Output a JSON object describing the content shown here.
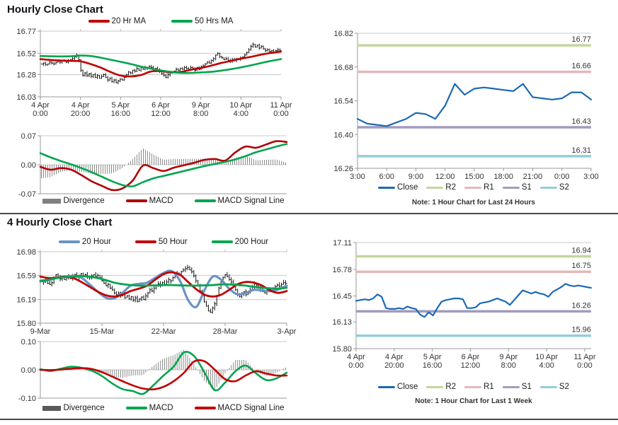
{
  "legends": {
    "hourly_price": [
      {
        "label": "20 Hr MA",
        "color": "#c00000"
      },
      {
        "label": "50 Hrs MA",
        "color": "#00a550"
      }
    ],
    "hourly_macd": [
      {
        "label": "Divergence",
        "color": "#808080",
        "shape": "rect"
      },
      {
        "label": "MACD",
        "color": "#b00000",
        "shape": "line"
      },
      {
        "label": "MACD Signal Line",
        "color": "#00a550",
        "shape": "line"
      }
    ],
    "hourly_levels": [
      {
        "label": "Close",
        "color": "#1a6ab4"
      },
      {
        "label": "R2",
        "color": "#c3d69b"
      },
      {
        "label": "R1",
        "color": "#e5b8b7"
      },
      {
        "label": "S1",
        "color": "#a29ac2"
      },
      {
        "label": "S2",
        "color": "#92cddc"
      }
    ],
    "four_price": [
      {
        "label": "20 Hour",
        "color": "#6b93c4"
      },
      {
        "label": "50 Hour",
        "color": "#c00000"
      },
      {
        "label": "200 Hour",
        "color": "#00a550"
      }
    ],
    "four_macd": [
      {
        "label": "Divergence",
        "color": "#595959",
        "shape": "rect"
      },
      {
        "label": "MACD",
        "color": "#00a550",
        "shape": "line"
      },
      {
        "label": "MACD Signal Line",
        "color": "#c00000",
        "shape": "line"
      }
    ],
    "four_levels": [
      {
        "label": "Close",
        "color": "#1a6ab4"
      },
      {
        "label": "R2",
        "color": "#c3d69b"
      },
      {
        "label": "R1",
        "color": "#e5b8b7"
      },
      {
        "label": "S1",
        "color": "#a29ac2"
      },
      {
        "label": "S2",
        "color": "#92cddc"
      }
    ]
  },
  "chart_data": [
    {
      "id": "hourly_price",
      "type": "bar",
      "title": "Hourly Close Chart",
      "ylim": [
        16.03,
        16.77
      ],
      "yticks": [
        16.77,
        16.52,
        16.28,
        16.03
      ],
      "ytick_labels": [
        "16.77",
        "16.52",
        "16.28",
        "16.03"
      ],
      "grid_values": [
        16.52,
        16.28
      ],
      "xticks": [
        [
          "4 Apr",
          "0:00"
        ],
        [
          "4 Apr",
          "20:00"
        ],
        [
          "5 Apr",
          "16:00"
        ],
        [
          "6 Apr",
          "12:00"
        ],
        [
          "9 Apr",
          "8:00"
        ],
        [
          "10 Apr",
          "4:00"
        ],
        [
          "11 Apr",
          "0:00"
        ]
      ],
      "bar_color": "#111111",
      "closes": [
        16.4,
        16.41,
        16.39,
        16.4,
        16.42,
        16.41,
        16.4,
        16.42,
        16.43,
        16.42,
        16.44,
        16.43,
        16.42,
        16.44,
        16.45,
        16.46,
        16.48,
        16.5,
        16.45,
        16.33,
        16.27,
        16.3,
        16.27,
        16.29,
        16.26,
        16.28,
        16.25,
        16.27,
        16.24,
        16.26,
        16.28,
        16.25,
        16.22,
        16.24,
        16.2,
        16.22,
        16.19,
        16.21,
        16.23,
        16.22,
        16.25,
        16.28,
        16.31,
        16.3,
        16.33,
        16.32,
        16.35,
        16.33,
        16.36,
        16.34,
        16.36,
        16.35,
        16.37,
        16.36,
        16.34,
        16.35,
        16.33,
        16.32,
        16.29,
        16.27,
        16.25,
        16.28,
        16.3,
        16.31,
        16.32,
        16.34,
        16.33,
        16.35,
        16.34,
        16.36,
        16.35,
        16.34,
        16.36,
        16.35,
        16.33,
        16.36,
        16.34,
        16.37,
        16.38,
        16.4,
        16.42,
        16.41,
        16.44,
        16.46,
        16.5,
        16.52,
        16.48,
        16.47,
        16.45,
        16.46,
        16.44,
        16.43,
        16.45,
        16.44,
        16.46,
        16.45,
        16.47,
        16.48,
        16.5,
        16.53,
        16.56,
        16.6,
        16.62,
        16.59,
        16.61,
        16.58,
        16.6,
        16.57,
        16.55,
        16.56,
        16.54,
        16.55,
        16.53,
        16.55,
        16.56,
        16.55
      ],
      "series": [
        {
          "name": "20 Hr MA",
          "color": "#c00000",
          "values": [
            16.455,
            16.445,
            16.44,
            16.435,
            16.43,
            16.4,
            16.36,
            16.31,
            16.27,
            16.26,
            16.275,
            16.315,
            16.32,
            16.305,
            16.31,
            16.335,
            16.355,
            16.38,
            16.41,
            16.435,
            16.46,
            16.48,
            16.505,
            16.525,
            16.54
          ]
        },
        {
          "name": "50 Hrs MA",
          "color": "#00a550",
          "values": [
            16.49,
            16.487,
            16.485,
            16.487,
            16.495,
            16.49,
            16.472,
            16.448,
            16.425,
            16.4,
            16.372,
            16.348,
            16.328,
            16.312,
            16.3,
            16.3,
            16.305,
            16.312,
            16.325,
            16.342,
            16.362,
            16.385,
            16.41,
            16.435,
            16.455
          ]
        }
      ]
    },
    {
      "id": "hourly_macd",
      "type": "line",
      "ylim": [
        -0.07,
        0.07
      ],
      "yticks": [
        0.07,
        0.0,
        -0.07
      ],
      "ytick_labels": [
        "0.07",
        "0.00",
        "-0.07"
      ],
      "divergence_color": "#8a8a8a",
      "series": [
        {
          "name": "MACD",
          "color": "#b00000",
          "values": [
            -0.005,
            -0.012,
            -0.008,
            -0.012,
            -0.025,
            -0.04,
            -0.051,
            -0.061,
            -0.057,
            -0.038,
            -0.002,
            -0.008,
            -0.015,
            -0.007,
            -0.001,
            0.005,
            0.012,
            0.014,
            0.01,
            0.03,
            0.044,
            0.041,
            0.049,
            0.057,
            0.055
          ]
        },
        {
          "name": "MACD Signal Line",
          "color": "#00a550",
          "values": [
            0.028,
            0.018,
            0.009,
            0.001,
            -0.008,
            -0.018,
            -0.029,
            -0.04,
            -0.049,
            -0.052,
            -0.042,
            -0.033,
            -0.027,
            -0.021,
            -0.015,
            -0.009,
            -0.003,
            0.002,
            0.007,
            0.013,
            0.021,
            0.03,
            0.037,
            0.044,
            0.05
          ]
        }
      ]
    },
    {
      "id": "hourly_levels",
      "type": "line",
      "note": "Note: 1 Hour Chart for Last 24 Hours",
      "ylim": [
        16.26,
        16.82
      ],
      "yticks": [
        16.82,
        16.68,
        16.54,
        16.4,
        16.26
      ],
      "ytick_labels": [
        "16.82",
        "16.68",
        "16.54",
        "16.40",
        "16.26"
      ],
      "xticks": [
        "3:00",
        "6:00",
        "9:00",
        "12:00",
        "15:00",
        "18:00",
        "21:00",
        "0:00",
        "3:00"
      ],
      "levels": [
        {
          "name": "R2",
          "value": 16.77,
          "label": "16.77",
          "color": "#c3d69b"
        },
        {
          "name": "R1",
          "value": 16.66,
          "label": "16.66",
          "color": "#e5b8b7"
        },
        {
          "name": "S1",
          "value": 16.43,
          "label": "16.43",
          "color": "#a29ac2"
        },
        {
          "name": "S2",
          "value": 16.31,
          "label": "16.31",
          "color": "#92cddc"
        }
      ],
      "close_color": "#1a6ab4",
      "closes": [
        16.465,
        16.445,
        16.44,
        16.435,
        16.45,
        16.465,
        16.49,
        16.485,
        16.465,
        16.52,
        16.61,
        16.565,
        16.59,
        16.595,
        16.59,
        16.585,
        16.58,
        16.61,
        16.555,
        16.55,
        16.545,
        16.55,
        16.575,
        16.575,
        16.545
      ]
    },
    {
      "id": "four_price",
      "type": "bar",
      "title": "4 Hourly Close Chart",
      "ylim": [
        15.8,
        16.98
      ],
      "yticks": [
        16.98,
        16.59,
        16.19,
        15.8
      ],
      "ytick_labels": [
        "16.98",
        "16.59",
        "16.19",
        "15.80"
      ],
      "grid_values": [
        16.59,
        16.19
      ],
      "xticks": [
        "9-Mar",
        "15-Mar",
        "22-Mar",
        "28-Mar",
        "3-Apr"
      ],
      "bar_color": "#111111",
      "closes": [
        16.5,
        16.48,
        16.52,
        16.46,
        16.44,
        16.47,
        16.55,
        16.6,
        16.57,
        16.53,
        16.56,
        16.52,
        16.55,
        16.58,
        16.54,
        16.57,
        16.6,
        16.56,
        16.59,
        16.62,
        16.58,
        16.6,
        16.57,
        16.55,
        16.58,
        16.6,
        16.57,
        16.59,
        16.55,
        16.5,
        16.46,
        16.42,
        16.44,
        16.38,
        16.35,
        16.3,
        16.27,
        16.3,
        16.25,
        16.28,
        16.22,
        16.25,
        16.2,
        16.24,
        16.18,
        16.22,
        16.16,
        16.2,
        16.23,
        16.19,
        16.25,
        16.3,
        16.35,
        16.33,
        16.38,
        16.42,
        16.45,
        16.43,
        16.47,
        16.44,
        16.48,
        16.52,
        16.5,
        16.55,
        16.58,
        16.62,
        16.6,
        16.65,
        16.68,
        16.7,
        16.72,
        16.68,
        16.65,
        16.58,
        16.5,
        16.42,
        16.33,
        16.25,
        16.15,
        16.08,
        16.0,
        15.98,
        16.05,
        16.12,
        16.25,
        16.38,
        16.48,
        16.55,
        16.6,
        16.57,
        16.52,
        16.48,
        16.42,
        16.35,
        16.28,
        16.24,
        16.28,
        16.32,
        16.27,
        16.3,
        16.35,
        16.4,
        16.45,
        16.42,
        16.38,
        16.35,
        16.32,
        16.3,
        16.33,
        16.36,
        16.34,
        16.38,
        16.4,
        16.43,
        16.41,
        16.44,
        16.47,
        16.46
      ],
      "series": [
        {
          "name": "20 Hour",
          "color": "#6b93c4",
          "width": 3.2,
          "values": [
            16.49,
            16.51,
            16.55,
            16.57,
            16.58,
            16.55,
            16.44,
            16.32,
            16.22,
            16.21,
            16.3,
            16.42,
            16.45,
            16.47,
            16.55,
            16.63,
            16.66,
            16.5,
            16.18,
            16.07,
            16.35,
            16.57,
            16.52,
            16.37,
            16.275,
            16.3,
            16.35,
            16.34,
            16.33,
            16.36,
            16.42
          ]
        },
        {
          "name": "50 Hour",
          "color": "#c00000",
          "width": 2.8,
          "values": [
            16.57,
            16.545,
            16.55,
            16.565,
            16.545,
            16.48,
            16.4,
            16.32,
            16.26,
            16.24,
            16.27,
            16.33,
            16.37,
            16.42,
            16.52,
            16.61,
            16.64,
            16.6,
            16.48,
            16.36,
            16.27,
            16.24,
            16.27,
            16.35,
            16.44,
            16.48,
            16.47,
            16.42,
            16.34,
            16.3,
            16.33
          ],
          "values_note": "resampled"
        },
        {
          "name": "200 Hour",
          "color": "#00a550",
          "width": 2.8,
          "values": [
            16.5,
            16.52,
            16.545,
            16.56,
            16.57,
            16.58,
            16.565,
            16.545,
            16.51,
            16.47,
            16.445,
            16.43,
            16.42,
            16.42,
            16.425,
            16.43,
            16.43,
            16.425,
            16.42,
            16.42,
            16.425,
            16.43,
            16.44,
            16.44,
            16.43,
            16.42,
            16.4,
            16.385,
            16.375,
            16.37,
            16.385
          ]
        }
      ]
    },
    {
      "id": "four_macd",
      "type": "line",
      "ylim": [
        -0.1,
        0.1
      ],
      "yticks": [
        0.1,
        0.0,
        -0.1
      ],
      "ytick_labels": [
        "0.10",
        "0.00",
        "-0.10"
      ],
      "divergence_color": "#8a8a8a",
      "series": [
        {
          "name": "MACD",
          "color": "#00a550",
          "values": [
            0.002,
            -0.004,
            0.004,
            0.011,
            0.007,
            -0.003,
            -0.022,
            -0.048,
            -0.068,
            -0.075,
            -0.085,
            -0.055,
            -0.02,
            0.012,
            0.062,
            0.048,
            -0.01,
            -0.072,
            -0.045,
            -0.005,
            0.015,
            -0.012,
            -0.036,
            -0.03,
            -0.01
          ]
        },
        {
          "name": "MACD Signal Line",
          "color": "#c00000",
          "values": [
            0.0,
            -0.001,
            0.001,
            0.004,
            0.006,
            0.003,
            -0.008,
            -0.024,
            -0.04,
            -0.055,
            -0.066,
            -0.069,
            -0.06,
            -0.04,
            -0.01,
            0.03,
            0.03,
            0.0,
            -0.033,
            -0.04,
            -0.02,
            -0.005,
            -0.013,
            -0.02,
            -0.02
          ]
        }
      ]
    },
    {
      "id": "four_levels",
      "type": "line",
      "note": "Note: 1 Hour Chart for Last 1 Week",
      "ylim": [
        15.8,
        17.11
      ],
      "yticks": [
        17.11,
        16.78,
        16.45,
        16.13,
        15.8
      ],
      "ytick_labels": [
        "17.11",
        "16.78",
        "16.45",
        "16.13",
        "15.80"
      ],
      "xticks": [
        [
          "4 Apr",
          "0:00"
        ],
        [
          "4 Apr",
          "20:00"
        ],
        [
          "5 Apr",
          "16:00"
        ],
        [
          "6 Apr",
          "12:00"
        ],
        [
          "9 Apr",
          "8:00"
        ],
        [
          "10 Apr",
          "4:00"
        ],
        [
          "11 Apr",
          "0:00"
        ]
      ],
      "levels": [
        {
          "name": "R2",
          "value": 16.94,
          "label": "16.94",
          "color": "#c3d69b"
        },
        {
          "name": "R1",
          "value": 16.75,
          "label": "16.75",
          "color": "#e5b8b7"
        },
        {
          "name": "S1",
          "value": 16.26,
          "label": "16.26",
          "color": "#a29ac2"
        },
        {
          "name": "S2",
          "value": 15.96,
          "label": "15.96",
          "color": "#92cddc"
        }
      ],
      "close_color": "#1a6ab4",
      "closes": [
        16.39,
        16.4,
        16.41,
        16.4,
        16.42,
        16.47,
        16.44,
        16.3,
        16.29,
        16.29,
        16.3,
        16.29,
        16.32,
        16.3,
        16.29,
        16.22,
        16.19,
        16.25,
        16.21,
        16.3,
        16.38,
        16.4,
        16.41,
        16.42,
        16.42,
        16.41,
        16.3,
        16.3,
        16.31,
        16.36,
        16.37,
        16.38,
        16.4,
        16.42,
        16.4,
        16.38,
        16.34,
        16.4,
        16.46,
        16.52,
        16.5,
        16.48,
        16.5,
        16.48,
        16.47,
        16.44,
        16.5,
        16.53,
        16.56,
        16.6,
        16.58,
        16.57,
        16.58,
        16.57,
        16.56,
        16.55
      ]
    }
  ]
}
